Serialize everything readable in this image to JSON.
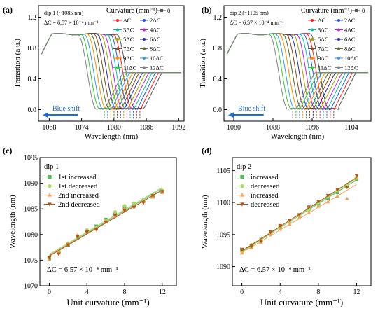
{
  "chart_data": [
    {
      "panel": "(a)",
      "type": "line",
      "note1": "dip 1 (~1085 nm)",
      "note2": "ΔC = 6.57 × 10⁻⁴ mm⁻¹",
      "legend_title": "Curvature (mm⁻¹)",
      "xlabel": "Wavelength (nm)",
      "ylabel": "Transition (a.u.)",
      "xlim": [
        1066,
        1093
      ],
      "ylim": [
        -0.15,
        1.35
      ],
      "xticks": [
        1068,
        1074,
        1080,
        1086,
        1092
      ],
      "yticks": [
        0.0,
        0.4,
        0.8,
        1.2
      ],
      "arrow_label": "Blue shift",
      "series": [
        {
          "name": "0",
          "color": "#555555",
          "edge": 1084.0
        },
        {
          "name": "ΔC",
          "color": "#ff2020",
          "edge": 1083.4
        },
        {
          "name": "2ΔC",
          "color": "#1f5fd6",
          "edge": 1082.8
        },
        {
          "name": "3ΔC",
          "color": "#14b8a6",
          "edge": 1082.2
        },
        {
          "name": "4ΔC",
          "color": "#c026d3",
          "edge": 1081.6
        },
        {
          "name": "5ΔC",
          "color": "#a3a300",
          "edge": 1081.0
        },
        {
          "name": "6ΔC",
          "color": "#2d2d9a",
          "edge": 1080.4
        },
        {
          "name": "7ΔC",
          "color": "#8b4513",
          "edge": 1079.8
        },
        {
          "name": "8ΔC",
          "color": "#556b2f",
          "edge": 1079.2
        },
        {
          "name": "9ΔC",
          "color": "#ff8c00",
          "edge": 1078.6
        },
        {
          "name": "10ΔC",
          "color": "#3b9be6",
          "edge": 1078.0
        },
        {
          "name": "11ΔC",
          "color": "#33cc33",
          "edge": 1077.4
        },
        {
          "name": "12ΔC",
          "color": "#808080",
          "edge": 1076.8
        }
      ]
    },
    {
      "panel": "(b)",
      "type": "line",
      "note1": "dip 2 (~1105 nm)",
      "note2": "ΔC = 6.57 × 10⁻⁴ mm⁻¹",
      "legend_title": "Curvature (mm⁻¹)",
      "xlabel": "Wavelength (nm)",
      "ylabel": "Transition (a.u.)",
      "xlim": [
        1078,
        1108
      ],
      "ylim": [
        -0.15,
        1.35
      ],
      "xticks": [
        1080,
        1088,
        1096,
        1104
      ],
      "yticks": [
        0.0,
        0.4,
        0.8,
        1.2
      ],
      "arrow_label": "Blue shift",
      "series": [
        {
          "name": "0",
          "color": "#555555",
          "edge": 1099.5
        },
        {
          "name": "ΔC",
          "color": "#ff2020",
          "edge": 1098.8
        },
        {
          "name": "2ΔC",
          "color": "#1f5fd6",
          "edge": 1098.1
        },
        {
          "name": "3ΔC",
          "color": "#14b8a6",
          "edge": 1097.4
        },
        {
          "name": "4ΔC",
          "color": "#c026d3",
          "edge": 1096.7
        },
        {
          "name": "5ΔC",
          "color": "#a3a300",
          "edge": 1096.0
        },
        {
          "name": "6ΔC",
          "color": "#2d2d9a",
          "edge": 1095.3
        },
        {
          "name": "7ΔC",
          "color": "#8b4513",
          "edge": 1094.6
        },
        {
          "name": "8ΔC",
          "color": "#556b2f",
          "edge": 1093.9
        },
        {
          "name": "9ΔC",
          "color": "#ff8c00",
          "edge": 1093.2
        },
        {
          "name": "10ΔC",
          "color": "#3b9be6",
          "edge": 1092.5
        },
        {
          "name": "11ΔC",
          "color": "#33cc33",
          "edge": 1091.8
        },
        {
          "name": "12ΔC",
          "color": "#808080",
          "edge": 1091.1
        }
      ]
    },
    {
      "panel": "(c)",
      "type": "scatter",
      "note1": "dip 1",
      "note2": "ΔC = 6.57 × 10⁻⁴ mm⁻¹",
      "xlabel": "Unit curvature (mm⁻¹)",
      "ylabel": "Wavelength (nm)",
      "xlim": [
        -1,
        13.5
      ],
      "ylim": [
        1070,
        1095
      ],
      "xticks": [
        0,
        4,
        8,
        12
      ],
      "yticks": [
        1070,
        1075,
        1080,
        1085,
        1090,
        1095
      ],
      "x": [
        0,
        1,
        2,
        3,
        4,
        5,
        6,
        7,
        8,
        9,
        10,
        11,
        12
      ],
      "series": [
        {
          "name": "1st increased",
          "color": "#5cb85c",
          "marker": "square",
          "values": [
            1075.4,
            1076.6,
            1078.0,
            1079.3,
            1080.6,
            1081.6,
            1082.9,
            1083.9,
            1085.4,
            1085.9,
            1086.6,
            1087.5,
            1088.3
          ]
        },
        {
          "name": "1st decreased",
          "color": "#a6d96a",
          "marker": "circle",
          "values": [
            1075.6,
            1076.9,
            1078.3,
            1079.7,
            1080.9,
            1081.4,
            1082.7,
            1084.4,
            1085.6,
            1086.1,
            1086.8,
            1087.8,
            1088.6
          ]
        },
        {
          "name": "2nd increased",
          "color": "#f4a261",
          "marker": "triangle-up",
          "values": [
            1075.2,
            1076.4,
            1078.1,
            1079.9,
            1080.7,
            1081.1,
            1082.5,
            1083.6,
            1084.9,
            1085.5,
            1086.4,
            1087.3,
            1088.2
          ]
        },
        {
          "name": "2nd decreased",
          "color": "#b5541c",
          "marker": "triangle-down",
          "values": [
            1075.5,
            1076.2,
            1078.0,
            1079.6,
            1080.5,
            1081.0,
            1082.4,
            1083.8,
            1084.7,
            1085.3,
            1086.2,
            1087.6,
            1088.4
          ]
        }
      ]
    },
    {
      "panel": "(d)",
      "type": "scatter",
      "note1": "dip 2",
      "note2": "ΔC = 6.57 × 10⁻⁴ mm⁻¹",
      "xlabel": "Unit curvature (mm⁻¹)",
      "ylabel": "Wavelength (nm)",
      "xlim": [
        -1,
        13.5
      ],
      "ylim": [
        1087,
        1107
      ],
      "xticks": [
        0,
        4,
        8,
        12
      ],
      "yticks": [
        1090,
        1095,
        1100,
        1105
      ],
      "x": [
        0,
        1,
        2,
        3,
        4,
        5,
        6,
        7,
        8,
        9,
        10,
        11,
        12
      ],
      "series": [
        {
          "name": "increased",
          "color": "#5cb85c",
          "marker": "square",
          "values": [
            1092.6,
            1093.0,
            1094.1,
            1095.2,
            1096.2,
            1097.0,
            1098.0,
            1099.1,
            1099.8,
            1100.7,
            1101.6,
            1102.5,
            1103.6
          ]
        },
        {
          "name": "decreased",
          "color": "#a6d96a",
          "marker": "circle",
          "values": [
            1092.3,
            1093.4,
            1094.3,
            1095.0,
            1096.0,
            1096.9,
            1097.9,
            1098.8,
            1100.0,
            1100.9,
            1101.9,
            1102.8,
            1103.9
          ]
        },
        {
          "name": "increased",
          "color": "#f4a261",
          "marker": "triangle-up",
          "values": [
            1092.1,
            1092.9,
            1093.8,
            1095.1,
            1095.8,
            1096.6,
            1097.6,
            1098.4,
            1099.4,
            1100.1,
            1101.0,
            1100.6,
            1103.8
          ]
        },
        {
          "name": "decreased",
          "color": "#b5541c",
          "marker": "triangle-down",
          "values": [
            1092.7,
            1093.2,
            1094.0,
            1095.4,
            1096.4,
            1097.2,
            1098.1,
            1099.3,
            1100.2,
            1101.1,
            1102.0,
            1102.4,
            1104.2
          ]
        }
      ]
    }
  ]
}
